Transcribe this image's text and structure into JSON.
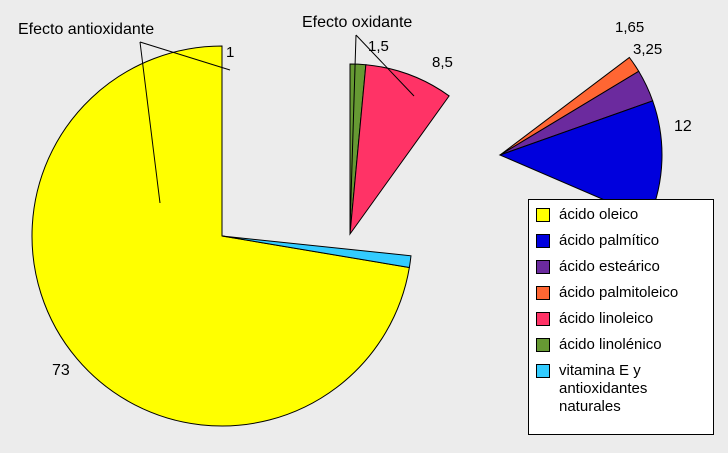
{
  "chart_data": {
    "type": "pie",
    "groups": [
      {
        "annotation": "Efecto antioxidante",
        "categories": [
          "ácido oleico",
          "vitamina E y\nantioxidantes\nnaturales"
        ]
      },
      {
        "annotation": "Efecto oxidante",
        "categories": [
          "ácido linolénico",
          "ácido linoleico"
        ]
      },
      {
        "annotation": "",
        "categories": [
          "ácido palmitoleico",
          "ácido esteárico",
          "ácido palmítico"
        ]
      }
    ],
    "slices": [
      {
        "label": "ácido oleico",
        "value": 73,
        "value_label": "73",
        "color": "#ffff00"
      },
      {
        "label": "ácido palmítico",
        "value": 12,
        "value_label": "12",
        "color": "#0000dd"
      },
      {
        "label": "ácido esteárico",
        "value": 3.25,
        "value_label": "3,25",
        "color": "#6b2a9e"
      },
      {
        "label": "ácido palmitoleico",
        "value": 1.65,
        "value_label": "1,65",
        "color": "#ff6633"
      },
      {
        "label": "ácido linoleico",
        "value": 8.5,
        "value_label": "8,5",
        "color": "#ff3366"
      },
      {
        "label": "ácido linolénico",
        "value": 1.5,
        "value_label": "1,5",
        "color": "#669933"
      },
      {
        "label": "vitamina E y\nantioxidantes\nnaturales",
        "value": 1,
        "value_label": "1",
        "color": "#33ccff"
      }
    ],
    "legend_position": "bottom-right"
  }
}
